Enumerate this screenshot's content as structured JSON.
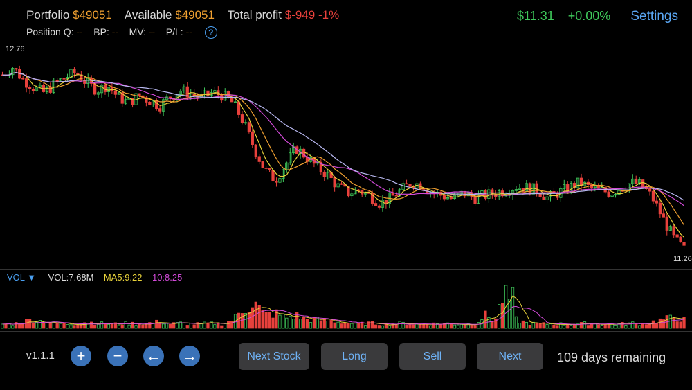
{
  "header": {
    "portfolio_label": "Portfolio",
    "portfolio_value": "$49051",
    "available_label": "Available",
    "available_value": "$49051",
    "total_profit_label": "Total profit",
    "total_profit_value": "$-949",
    "total_profit_pct": "-1%",
    "position_q_label": "Position Q:",
    "position_q_value": "--",
    "bp_label": "BP:",
    "bp_value": "--",
    "mv_label": "MV:",
    "mv_value": "--",
    "pl_label": "P/L:",
    "pl_value": "--",
    "help_glyph": "?",
    "price": "$11.31",
    "change": "+0.00%",
    "settings_label": "Settings"
  },
  "chart": {
    "high_label": "12.76",
    "low_label": "11.26"
  },
  "volume": {
    "toggle_label": "VOL ▼",
    "vol_label": "VOL:7.68M",
    "ma5_label": "MA5:9.22",
    "ma10_label": "10:8.25"
  },
  "footer": {
    "version": "v1.1.1",
    "zoom_in_glyph": "+",
    "zoom_out_glyph": "−",
    "back_glyph": "←",
    "forward_glyph": "→",
    "next_stock_label": "Next Stock",
    "long_label": "Long",
    "sell_label": "Sell",
    "next_label": "Next",
    "days_remaining": "109 days remaining"
  },
  "colors": {
    "up": "#3fc95b",
    "down": "#e8413c",
    "accent": "#4a9ff0",
    "ma_yellow": "#e8d23a",
    "ma_magenta": "#d24ad8",
    "ma_orange": "#f0a030",
    "ma_lavender": "#b8b8f0"
  },
  "chart_data": {
    "type": "candlestick",
    "y_max_label": 12.76,
    "y_min_label": 11.26,
    "close_trend": [
      12.62,
      12.68,
      12.58,
      12.52,
      12.48,
      12.55,
      12.6,
      12.64,
      12.56,
      12.5,
      12.54,
      12.45,
      12.4,
      12.46,
      12.42,
      12.38,
      12.45,
      12.5,
      12.47,
      12.44,
      12.48,
      12.46,
      12.4,
      12.25,
      12.05,
      11.88,
      11.8,
      11.92,
      12.05,
      11.98,
      11.9,
      11.84,
      11.75,
      11.7,
      11.72,
      11.68,
      11.62,
      11.66,
      11.72,
      11.78,
      11.76,
      11.7,
      11.68,
      11.65,
      11.7,
      11.66,
      11.68,
      11.7,
      11.72,
      11.75,
      11.74,
      11.72,
      11.66,
      11.7,
      11.74,
      11.78,
      11.74,
      11.72,
      11.7,
      11.74,
      11.78,
      11.76,
      11.66,
      11.5,
      11.35,
      11.26
    ],
    "volume_trend": [
      0.1,
      0.1,
      0.15,
      0.2,
      0.15,
      0.12,
      0.1,
      0.1,
      0.15,
      0.12,
      0.1,
      0.1,
      0.12,
      0.1,
      0.12,
      0.15,
      0.1,
      0.12,
      0.1,
      0.1,
      0.12,
      0.1,
      0.2,
      0.45,
      0.6,
      0.3,
      0.35,
      0.25,
      0.3,
      0.2,
      0.2,
      0.18,
      0.15,
      0.12,
      0.1,
      0.12,
      0.1,
      0.1,
      0.12,
      0.1,
      0.1,
      0.1,
      0.12,
      0.1,
      0.1,
      0.1,
      0.3,
      0.2,
      0.95,
      0.2,
      0.12,
      0.1,
      0.1,
      0.1,
      0.1,
      0.1,
      0.12,
      0.1,
      0.1,
      0.1,
      0.12,
      0.1,
      0.15,
      0.2,
      0.25,
      0.2
    ]
  }
}
